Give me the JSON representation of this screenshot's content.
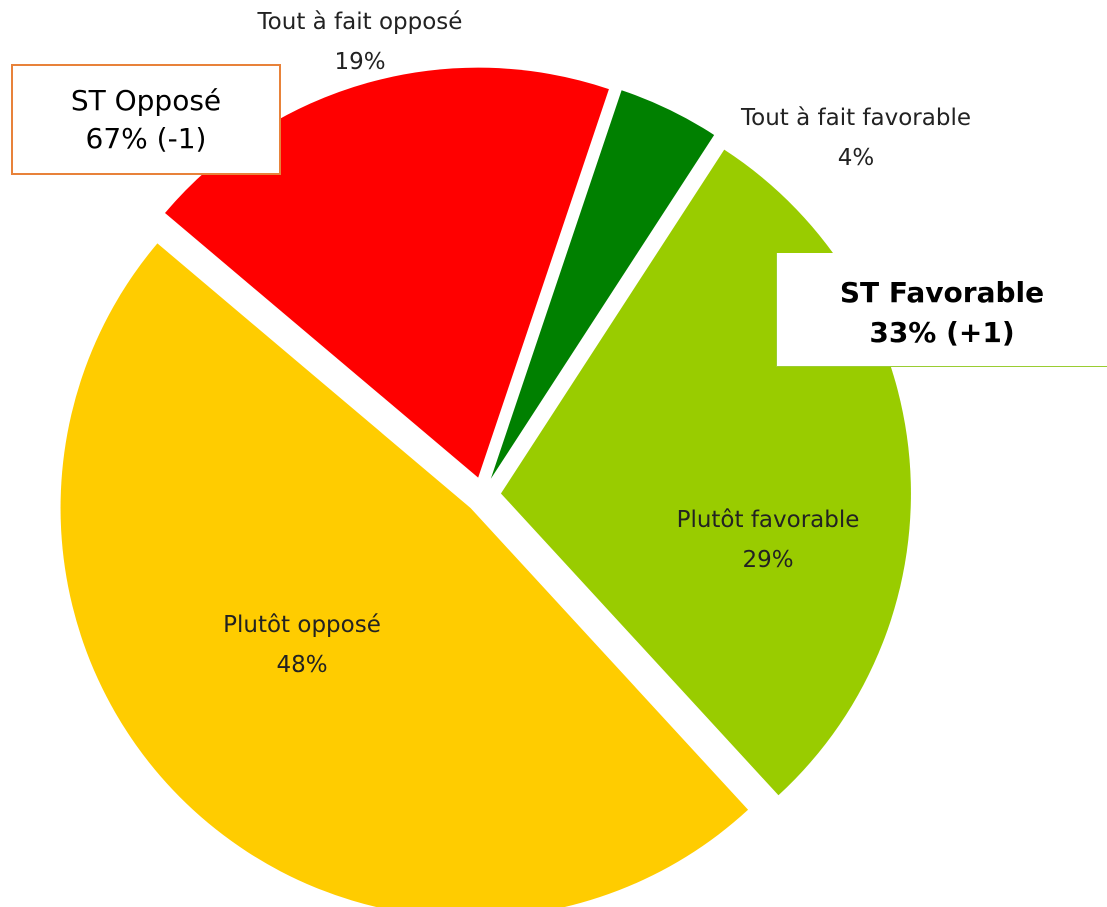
{
  "chart_data": {
    "type": "pie",
    "slices": [
      {
        "label": "Plutôt favorable",
        "value": 29,
        "value_label": "29%",
        "color": "#99cc00",
        "label_placement": "inside"
      },
      {
        "label": "Plutôt opposé",
        "value": 48,
        "value_label": "48%",
        "color": "#ffcc00",
        "label_placement": "inside"
      },
      {
        "label": "Tout à fait opposé",
        "value": 19,
        "value_label": "19%",
        "color": "#ff0000",
        "label_placement": "outside"
      },
      {
        "label": "Tout à fait favorable",
        "value": 4,
        "value_label": "4%",
        "color": "#008000",
        "label_placement": "outside"
      }
    ],
    "exploded": true,
    "legend": "none"
  },
  "callouts": {
    "opposed": {
      "title": "ST Opposé",
      "value": "67% (-1)",
      "border_color": "#e8823a"
    },
    "favorable": {
      "title": "ST Favorable",
      "value": "33% (+1)",
      "border_color": "#9acd32"
    }
  }
}
